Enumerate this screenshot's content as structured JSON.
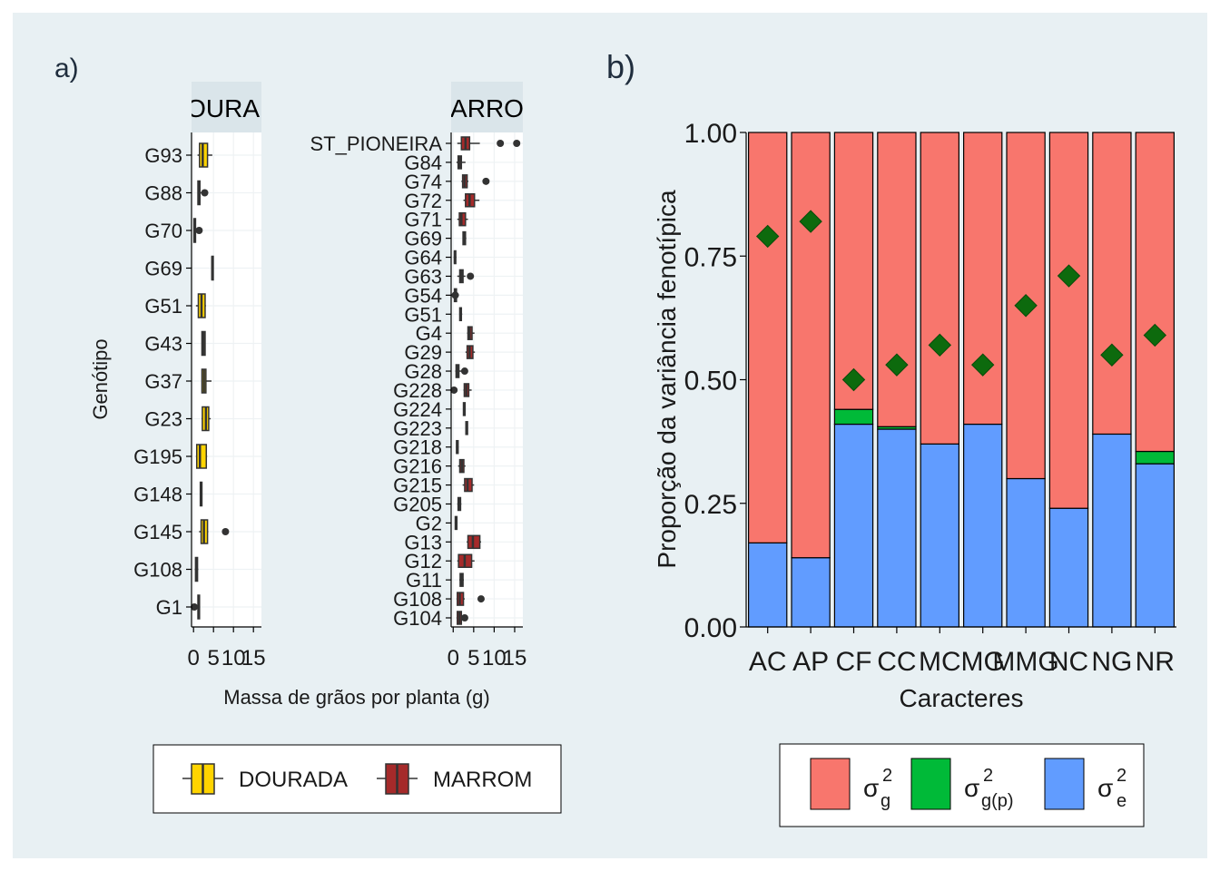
{
  "panel_a": {
    "label": "a)",
    "facets": [
      {
        "strip": "DOURADA",
        "strip_visible": "OURAI"
      },
      {
        "strip": "MARROM",
        "strip_visible": "ARRO"
      }
    ],
    "ylabel": "Genótipo",
    "xlabel": "Massa de grãos por planta (g)",
    "xticks": [
      "0",
      "5",
      "10",
      "15"
    ],
    "legend": [
      {
        "label": "DOURADA",
        "color": "#ffd400"
      },
      {
        "label": "MARROM",
        "color": "#a52a2a"
      }
    ]
  },
  "panel_b": {
    "label": "b)",
    "ylabel": "Proporção da variância fenotípica",
    "xlabel": "Caracteres",
    "yticks": [
      "0.00",
      "0.25",
      "0.50",
      "0.75",
      "1.00"
    ],
    "legend": [
      {
        "base": "σ",
        "sup": "2",
        "sub": "g",
        "color": "#f8766d"
      },
      {
        "base": "σ",
        "sup": "2",
        "sub": "g(p)",
        "color": "#00ba38"
      },
      {
        "base": "σ",
        "sup": "2",
        "sub": "e",
        "color": "#619cff"
      }
    ]
  },
  "colors": {
    "background": "#e8f0f3",
    "panel": "#ffffff",
    "strip": "#dae5ea",
    "grid": "#eef2f4",
    "dourada": "#ffd400",
    "marrom": "#a52a2a",
    "sigma_g": "#f8766d",
    "sigma_gp": "#00ba38",
    "sigma_e": "#619cff",
    "diamond": "#0d6a0d"
  },
  "chart_data": [
    {
      "type": "boxplot",
      "title": "",
      "xlabel": "Massa de grãos por planta (g)",
      "ylabel": "Genótipo",
      "xlim": [
        -0.5,
        17
      ],
      "facets": [
        {
          "name": "DOURADA",
          "categories": [
            "G93",
            "G88",
            "G70",
            "G69",
            "G51",
            "G43",
            "G37",
            "G23",
            "G195",
            "G148",
            "G145",
            "G108",
            "G1"
          ],
          "boxes": [
            {
              "lo": 1.0,
              "q1": 1.5,
              "med": 2.3,
              "q3": 3.5,
              "hi": 4.7,
              "out": []
            },
            {
              "lo": 1.0,
              "q1": 1.1,
              "med": 1.3,
              "q3": 1.6,
              "hi": 2.0,
              "out": [
                2.8
              ]
            },
            {
              "lo": 0.0,
              "q1": 0.1,
              "med": 0.3,
              "q3": 0.5,
              "hi": 0.6,
              "out": [
                1.4
              ]
            },
            {
              "lo": 4.5,
              "q1": 4.6,
              "med": 4.7,
              "q3": 4.8,
              "hi": 4.9,
              "out": []
            },
            {
              "lo": 0.6,
              "q1": 1.2,
              "med": 2.0,
              "q3": 2.9,
              "hi": 3.1,
              "out": []
            },
            {
              "lo": 2.0,
              "q1": 2.1,
              "med": 2.5,
              "q3": 2.9,
              "hi": 3.0,
              "out": []
            },
            {
              "lo": 2.0,
              "q1": 2.1,
              "med": 2.6,
              "q3": 3.1,
              "hi": 4.5,
              "out": []
            },
            {
              "lo": 2.0,
              "q1": 2.2,
              "med": 3.1,
              "q3": 3.8,
              "hi": 4.3,
              "out": []
            },
            {
              "lo": 0.6,
              "q1": 0.8,
              "med": 1.6,
              "q3": 3.2,
              "hi": 3.4,
              "out": []
            },
            {
              "lo": 1.6,
              "q1": 1.7,
              "med": 1.9,
              "q3": 2.1,
              "hi": 2.2,
              "out": []
            },
            {
              "lo": 1.4,
              "q1": 1.9,
              "med": 2.6,
              "q3": 3.5,
              "hi": 3.7,
              "out": [
                8.0
              ]
            },
            {
              "lo": 0.3,
              "q1": 0.5,
              "med": 0.8,
              "q3": 1.0,
              "hi": 1.2,
              "out": []
            },
            {
              "lo": 1.0,
              "q1": 1.1,
              "med": 1.3,
              "q3": 1.5,
              "hi": 1.6,
              "out": [
                0.2
              ]
            }
          ]
        },
        {
          "name": "MARROM",
          "categories": [
            "ST_PIONEIRA",
            "G84",
            "G74",
            "G72",
            "G71",
            "G69",
            "G64",
            "G63",
            "G54",
            "G51",
            "G4",
            "G29",
            "G28",
            "G228",
            "G224",
            "G223",
            "G218",
            "G216",
            "G215",
            "G205",
            "G2",
            "G13",
            "G12",
            "G11",
            "G108",
            "G104"
          ],
          "boxes": [
            {
              "lo": 1.0,
              "q1": 2.0,
              "med": 3.0,
              "q3": 4.0,
              "hi": 6.5,
              "out": [
                11.5,
                15.5
              ]
            },
            {
              "lo": 0.8,
              "q1": 1.2,
              "med": 1.6,
              "q3": 2.0,
              "hi": 3.0,
              "out": []
            },
            {
              "lo": 2.0,
              "q1": 2.3,
              "med": 2.8,
              "q3": 3.4,
              "hi": 3.7,
              "out": [
                8.0
              ]
            },
            {
              "lo": 2.5,
              "q1": 3.0,
              "med": 4.0,
              "q3": 5.2,
              "hi": 6.4,
              "out": []
            },
            {
              "lo": 1.0,
              "q1": 1.5,
              "med": 2.0,
              "q3": 3.0,
              "hi": 3.6,
              "out": []
            },
            {
              "lo": 2.3,
              "q1": 2.4,
              "med": 2.7,
              "q3": 3.0,
              "hi": 3.2,
              "out": []
            },
            {
              "lo": 0.1,
              "q1": 0.3,
              "med": 0.4,
              "q3": 0.6,
              "hi": 0.8,
              "out": []
            },
            {
              "lo": 1.0,
              "q1": 1.6,
              "med": 2.0,
              "q3": 2.4,
              "hi": 3.0,
              "out": [
                4.2
              ]
            },
            {
              "lo": -0.2,
              "q1": 0.3,
              "med": 0.5,
              "q3": 0.8,
              "hi": 1.4,
              "out": [
                0.5
              ]
            },
            {
              "lo": 1.5,
              "q1": 1.6,
              "med": 1.8,
              "q3": 2.0,
              "hi": 2.2,
              "out": []
            },
            {
              "lo": 3.4,
              "q1": 3.6,
              "med": 4.0,
              "q3": 4.6,
              "hi": 5.2,
              "out": []
            },
            {
              "lo": 3.0,
              "q1": 3.4,
              "med": 4.0,
              "q3": 4.8,
              "hi": 5.3,
              "out": []
            },
            {
              "lo": 0.5,
              "q1": 0.7,
              "med": 1.0,
              "q3": 1.4,
              "hi": 2.0,
              "out": [
                2.8
              ]
            },
            {
              "lo": 2.5,
              "q1": 2.7,
              "med": 3.2,
              "q3": 3.8,
              "hi": 4.5,
              "out": [
                0.2
              ]
            },
            {
              "lo": 2.4,
              "q1": 2.5,
              "med": 2.7,
              "q3": 2.9,
              "hi": 3.0,
              "out": []
            },
            {
              "lo": 3.0,
              "q1": 3.1,
              "med": 3.3,
              "q3": 3.5,
              "hi": 3.6,
              "out": []
            },
            {
              "lo": 0.7,
              "q1": 0.8,
              "med": 1.0,
              "q3": 1.2,
              "hi": 1.3,
              "out": []
            },
            {
              "lo": 1.2,
              "q1": 1.6,
              "med": 2.1,
              "q3": 2.6,
              "hi": 3.0,
              "out": []
            },
            {
              "lo": 2.3,
              "q1": 2.8,
              "med": 3.5,
              "q3": 4.6,
              "hi": 5.1,
              "out": []
            },
            {
              "lo": 1.0,
              "q1": 1.2,
              "med": 1.5,
              "q3": 1.8,
              "hi": 2.0,
              "out": []
            },
            {
              "lo": 0.4,
              "q1": 0.5,
              "med": 0.7,
              "q3": 0.9,
              "hi": 1.0,
              "out": []
            },
            {
              "lo": 3.3,
              "q1": 3.6,
              "med": 4.8,
              "q3": 6.5,
              "hi": 6.8,
              "out": []
            },
            {
              "lo": 1.0,
              "q1": 1.3,
              "med": 2.8,
              "q3": 4.5,
              "hi": 5.2,
              "out": []
            },
            {
              "lo": 1.5,
              "q1": 1.7,
              "med": 2.1,
              "q3": 2.4,
              "hi": 2.6,
              "out": []
            },
            {
              "lo": 0.8,
              "q1": 1.0,
              "med": 1.6,
              "q3": 2.5,
              "hi": 2.8,
              "out": [
                6.8
              ]
            },
            {
              "lo": 0.8,
              "q1": 1.0,
              "med": 1.5,
              "q3": 2.0,
              "hi": 2.3,
              "out": [
                2.8
              ]
            }
          ]
        }
      ]
    },
    {
      "type": "bar",
      "stacked": true,
      "title": "",
      "xlabel": "Caracteres",
      "ylabel": "Proporção da variância fenotípica",
      "ylim": [
        0,
        1
      ],
      "categories": [
        "AC",
        "AP",
        "CF",
        "CC",
        "MC",
        "MG",
        "MMG",
        "NC",
        "NG",
        "NR"
      ],
      "series": [
        {
          "name": "σ²e",
          "values": [
            0.17,
            0.14,
            0.41,
            0.4,
            0.37,
            0.41,
            0.3,
            0.24,
            0.39,
            0.33
          ]
        },
        {
          "name": "σ²g(p)",
          "values": [
            0.0,
            0.0,
            0.03,
            0.005,
            0.0,
            0.0,
            0.0,
            0.0,
            0.0,
            0.025
          ]
        },
        {
          "name": "σ²g",
          "values": [
            0.83,
            0.86,
            0.56,
            0.595,
            0.63,
            0.59,
            0.7,
            0.76,
            0.61,
            0.645
          ]
        }
      ],
      "markers": [
        0.79,
        0.82,
        0.5,
        0.53,
        0.57,
        0.53,
        0.65,
        0.71,
        0.55,
        0.59
      ]
    }
  ]
}
